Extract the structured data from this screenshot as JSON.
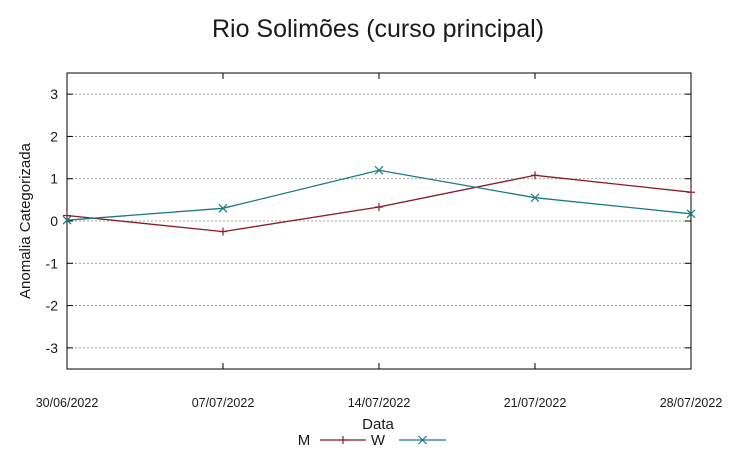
{
  "chart_data": {
    "type": "line",
    "title": "Rio Solimões (curso principal)",
    "xlabel": "Data",
    "ylabel": "Anomalia Categorizada",
    "x": [
      "30/06/2022",
      "07/07/2022",
      "14/07/2022",
      "21/07/2022",
      "28/07/2022"
    ],
    "ylim": [
      -3.5,
      3.5
    ],
    "yticks": [
      "-3",
      "-2",
      "-1",
      "0",
      "1",
      "2",
      "3"
    ],
    "grid": true,
    "legend_position": "bottom-center",
    "series": [
      {
        "name": "M",
        "values": [
          0.13,
          -0.25,
          0.33,
          1.08,
          0.68
        ],
        "color": "#8b1a2a",
        "marker": "plus"
      },
      {
        "name": "W",
        "values": [
          0.02,
          0.3,
          1.2,
          0.55,
          0.17
        ],
        "color": "#1a7a80",
        "marker": "cross"
      }
    ]
  }
}
